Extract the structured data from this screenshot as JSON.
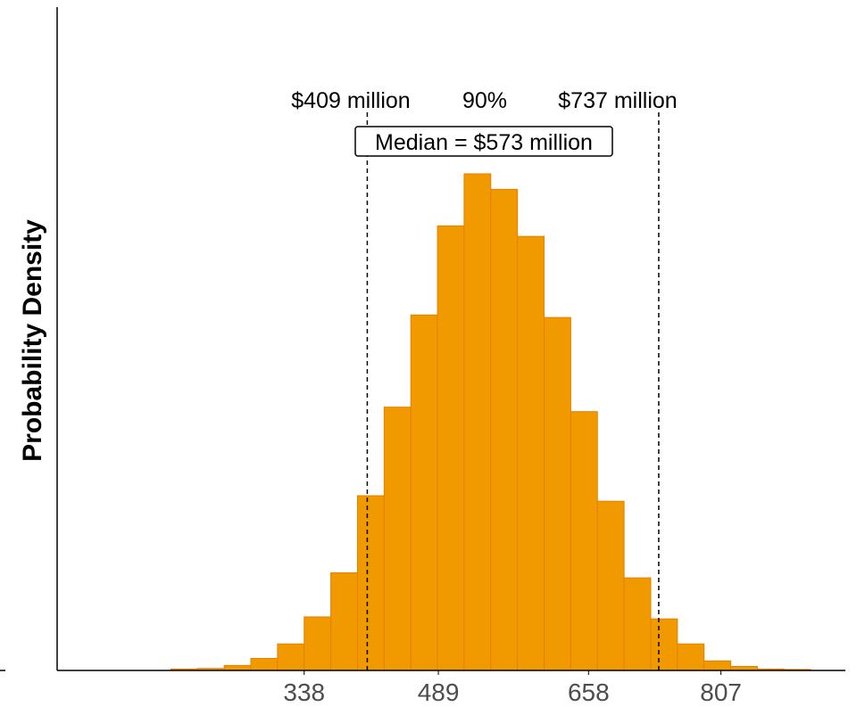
{
  "chart_data": {
    "type": "bar",
    "title": "",
    "xlabel": "",
    "ylabel": "Probability Density",
    "x_ticks": [
      338,
      489,
      658,
      807
    ],
    "bins": [
      {
        "x0": 188,
        "x1": 218,
        "density": 0.0003
      },
      {
        "x0": 218,
        "x1": 248,
        "density": 0.0004
      },
      {
        "x0": 248,
        "x1": 278,
        "density": 0.001
      },
      {
        "x0": 278,
        "x1": 308,
        "density": 0.0024
      },
      {
        "x0": 308,
        "x1": 338,
        "density": 0.0053
      },
      {
        "x0": 338,
        "x1": 368,
        "density": 0.0107
      },
      {
        "x0": 368,
        "x1": 398,
        "density": 0.0195
      },
      {
        "x0": 398,
        "x1": 428,
        "density": 0.0349
      },
      {
        "x0": 428,
        "x1": 458,
        "density": 0.0526
      },
      {
        "x0": 458,
        "x1": 488,
        "density": 0.071
      },
      {
        "x0": 488,
        "x1": 518,
        "density": 0.0888
      },
      {
        "x0": 518,
        "x1": 548,
        "density": 0.0992
      },
      {
        "x0": 548,
        "x1": 578,
        "density": 0.0961
      },
      {
        "x0": 578,
        "x1": 608,
        "density": 0.0867
      },
      {
        "x0": 608,
        "x1": 638,
        "density": 0.0705
      },
      {
        "x0": 638,
        "x1": 668,
        "density": 0.0517
      },
      {
        "x0": 668,
        "x1": 698,
        "density": 0.0338
      },
      {
        "x0": 698,
        "x1": 728,
        "density": 0.0185
      },
      {
        "x0": 728,
        "x1": 758,
        "density": 0.0103
      },
      {
        "x0": 758,
        "x1": 788,
        "density": 0.0053
      },
      {
        "x0": 788,
        "x1": 818,
        "density": 0.0019
      },
      {
        "x0": 818,
        "x1": 848,
        "density": 0.0008
      },
      {
        "x0": 848,
        "x1": 878,
        "density": 0.0003
      },
      {
        "x0": 878,
        "x1": 908,
        "density": 0.0002
      }
    ],
    "xlim": [
      60,
      947
    ],
    "ylim": [
      0,
      0.1325
    ],
    "lower_bound": {
      "value": 409,
      "label": "$409 million"
    },
    "upper_bound": {
      "value": 737,
      "label": "$737 million"
    },
    "interval_label": "90%",
    "median_label": "Median = $573 million",
    "bar_color": "#f09a00",
    "bar_edge_color": "#e87f00",
    "grid": false
  }
}
